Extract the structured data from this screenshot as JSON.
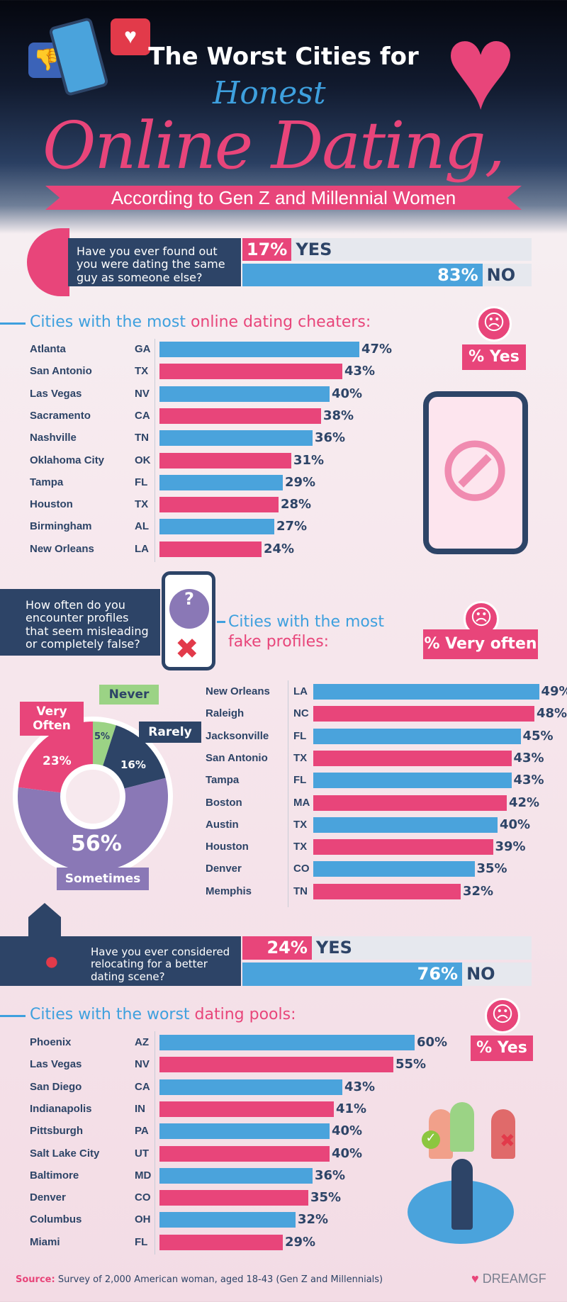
{
  "header": {
    "title_line1": "The Worst Cities for",
    "title_honest": "Honest",
    "title_main": "Online Dating,",
    "subtitle": "According to Gen Z and Millennial Women"
  },
  "q1": {
    "question": "Have you ever found out you were dating the same guy as someone else?",
    "yes_value": "17%",
    "yes_label": "YES",
    "no_value": "83%",
    "no_label": "NO",
    "yes_pct": 17,
    "no_pct": 83
  },
  "q3": {
    "question": "Have you ever considered relocating for a better dating scene?",
    "yes_value": "24%",
    "yes_label": "YES",
    "no_value": "76%",
    "no_label": "NO",
    "yes_pct": 24,
    "no_pct": 76
  },
  "q2": {
    "question": "How often do you encounter profiles that seem misleading or completely false?"
  },
  "colors": {
    "pink": "#e8457a",
    "blue": "#4aa3dc",
    "navy": "#2d4467",
    "purple": "#8a78b6",
    "green": "#9bd385"
  },
  "chart_data": [
    {
      "type": "bar",
      "orientation": "horizontal",
      "title_pre": "Cities with the most ",
      "title_hl": "online dating cheaters:",
      "badge": "% Yes",
      "categories": [
        "Atlanta",
        "San Antonio",
        "Las Vegas",
        "Sacramento",
        "Nashville",
        "Oklahoma City",
        "Tampa",
        "Houston",
        "Birmingham",
        "New Orleans"
      ],
      "states": [
        "GA",
        "TX",
        "NV",
        "CA",
        "TN",
        "OK",
        "FL",
        "TX",
        "AL",
        "LA"
      ],
      "values": [
        47,
        43,
        40,
        38,
        36,
        31,
        29,
        28,
        27,
        24
      ]
    },
    {
      "type": "bar",
      "orientation": "horizontal",
      "title_pre": "Cities with the most ",
      "title_hl": "fake profiles:",
      "badge": "% Very often",
      "categories": [
        "New Orleans",
        "Raleigh",
        "Jacksonville",
        "San Antonio",
        "Tampa",
        "Boston",
        "Austin",
        "Houston",
        "Denver",
        "Memphis"
      ],
      "states": [
        "LA",
        "NC",
        "FL",
        "TX",
        "FL",
        "MA",
        "TX",
        "TX",
        "CO",
        "TN"
      ],
      "values": [
        49,
        48,
        45,
        43,
        43,
        42,
        40,
        39,
        35,
        32
      ]
    },
    {
      "type": "bar",
      "orientation": "horizontal",
      "title_pre": "Cities with the worst ",
      "title_hl": "dating pools:",
      "badge": "% Yes",
      "categories": [
        "Phoenix",
        "Las Vegas",
        "San Diego",
        "Indianapolis",
        "Pittsburgh",
        "Salt Lake City",
        "Baltimore",
        "Denver",
        "Columbus",
        "Miami"
      ],
      "states": [
        "AZ",
        "NV",
        "CA",
        "IN",
        "PA",
        "UT",
        "MD",
        "CO",
        "OH",
        "FL"
      ],
      "values": [
        60,
        55,
        43,
        41,
        40,
        40,
        36,
        35,
        32,
        29
      ]
    },
    {
      "type": "pie",
      "donut": true,
      "slices": [
        {
          "label": "Never",
          "value": 5,
          "text": "5%",
          "color": "#9bd385"
        },
        {
          "label": "Rarely",
          "value": 16,
          "text": "16%",
          "color": "#2d4467"
        },
        {
          "label": "Sometimes",
          "value": 56,
          "text": "56%",
          "color": "#8a78b6"
        },
        {
          "label": "Very Often",
          "value": 23,
          "text": "23%",
          "color": "#e8457a"
        }
      ]
    }
  ],
  "footer": {
    "source_label": "Source:",
    "source_text": "Survey of 2,000 American woman, aged 18-43 (Gen Z and Millennials)",
    "brand": "DREAMGF"
  }
}
